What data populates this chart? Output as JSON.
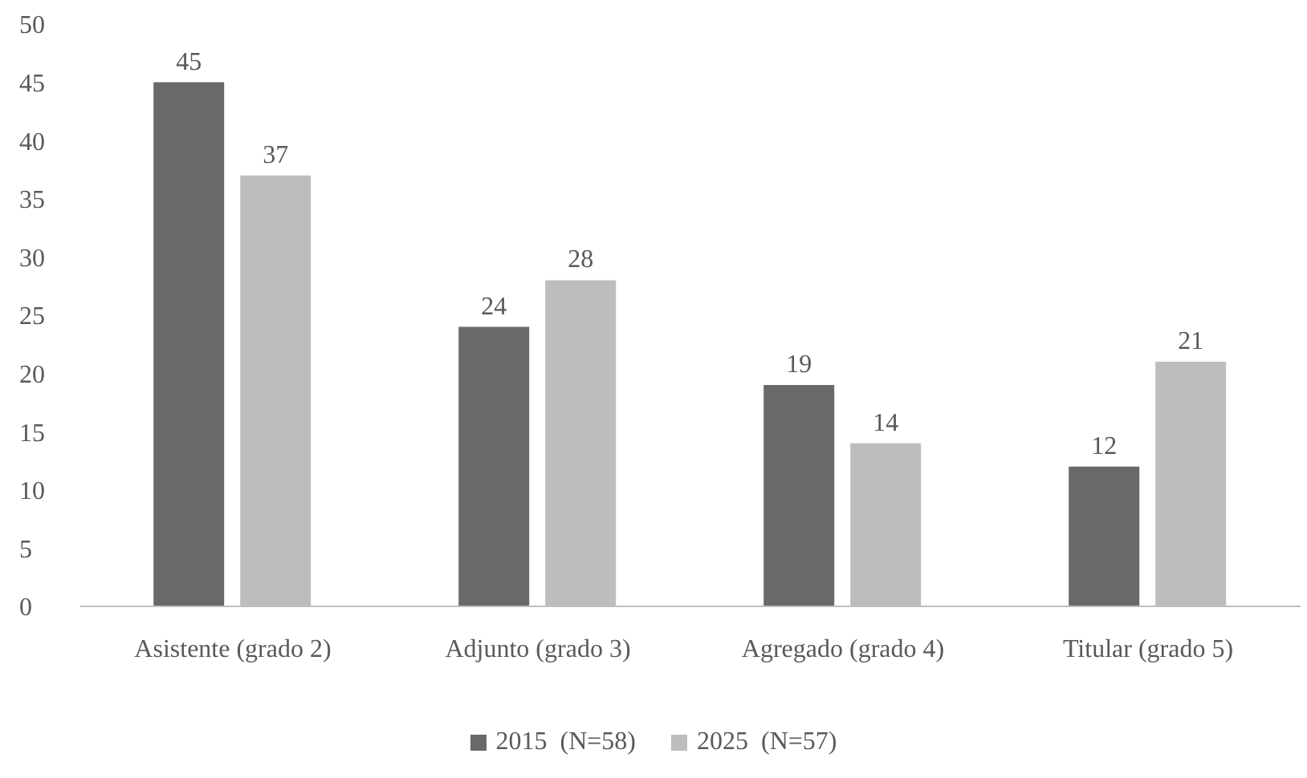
{
  "chart_data": {
    "type": "bar",
    "categories": [
      "Asistente (grado 2)",
      "Adjunto (grado 3)",
      "Agregado (grado 4)",
      "Titular (grado 5)"
    ],
    "series": [
      {
        "name": "2015  (N=58)",
        "color": "#696969",
        "values": [
          45,
          24,
          19,
          12
        ]
      },
      {
        "name": "2025  (N=57)",
        "color": "#bdbdbd",
        "values": [
          37,
          28,
          14,
          21
        ]
      }
    ],
    "ylim": [
      0,
      50
    ],
    "yticks": [
      0,
      5,
      10,
      15,
      20,
      25,
      30,
      35,
      40,
      45,
      50
    ],
    "grid": false,
    "legend": "bottom",
    "data_labels": true
  }
}
